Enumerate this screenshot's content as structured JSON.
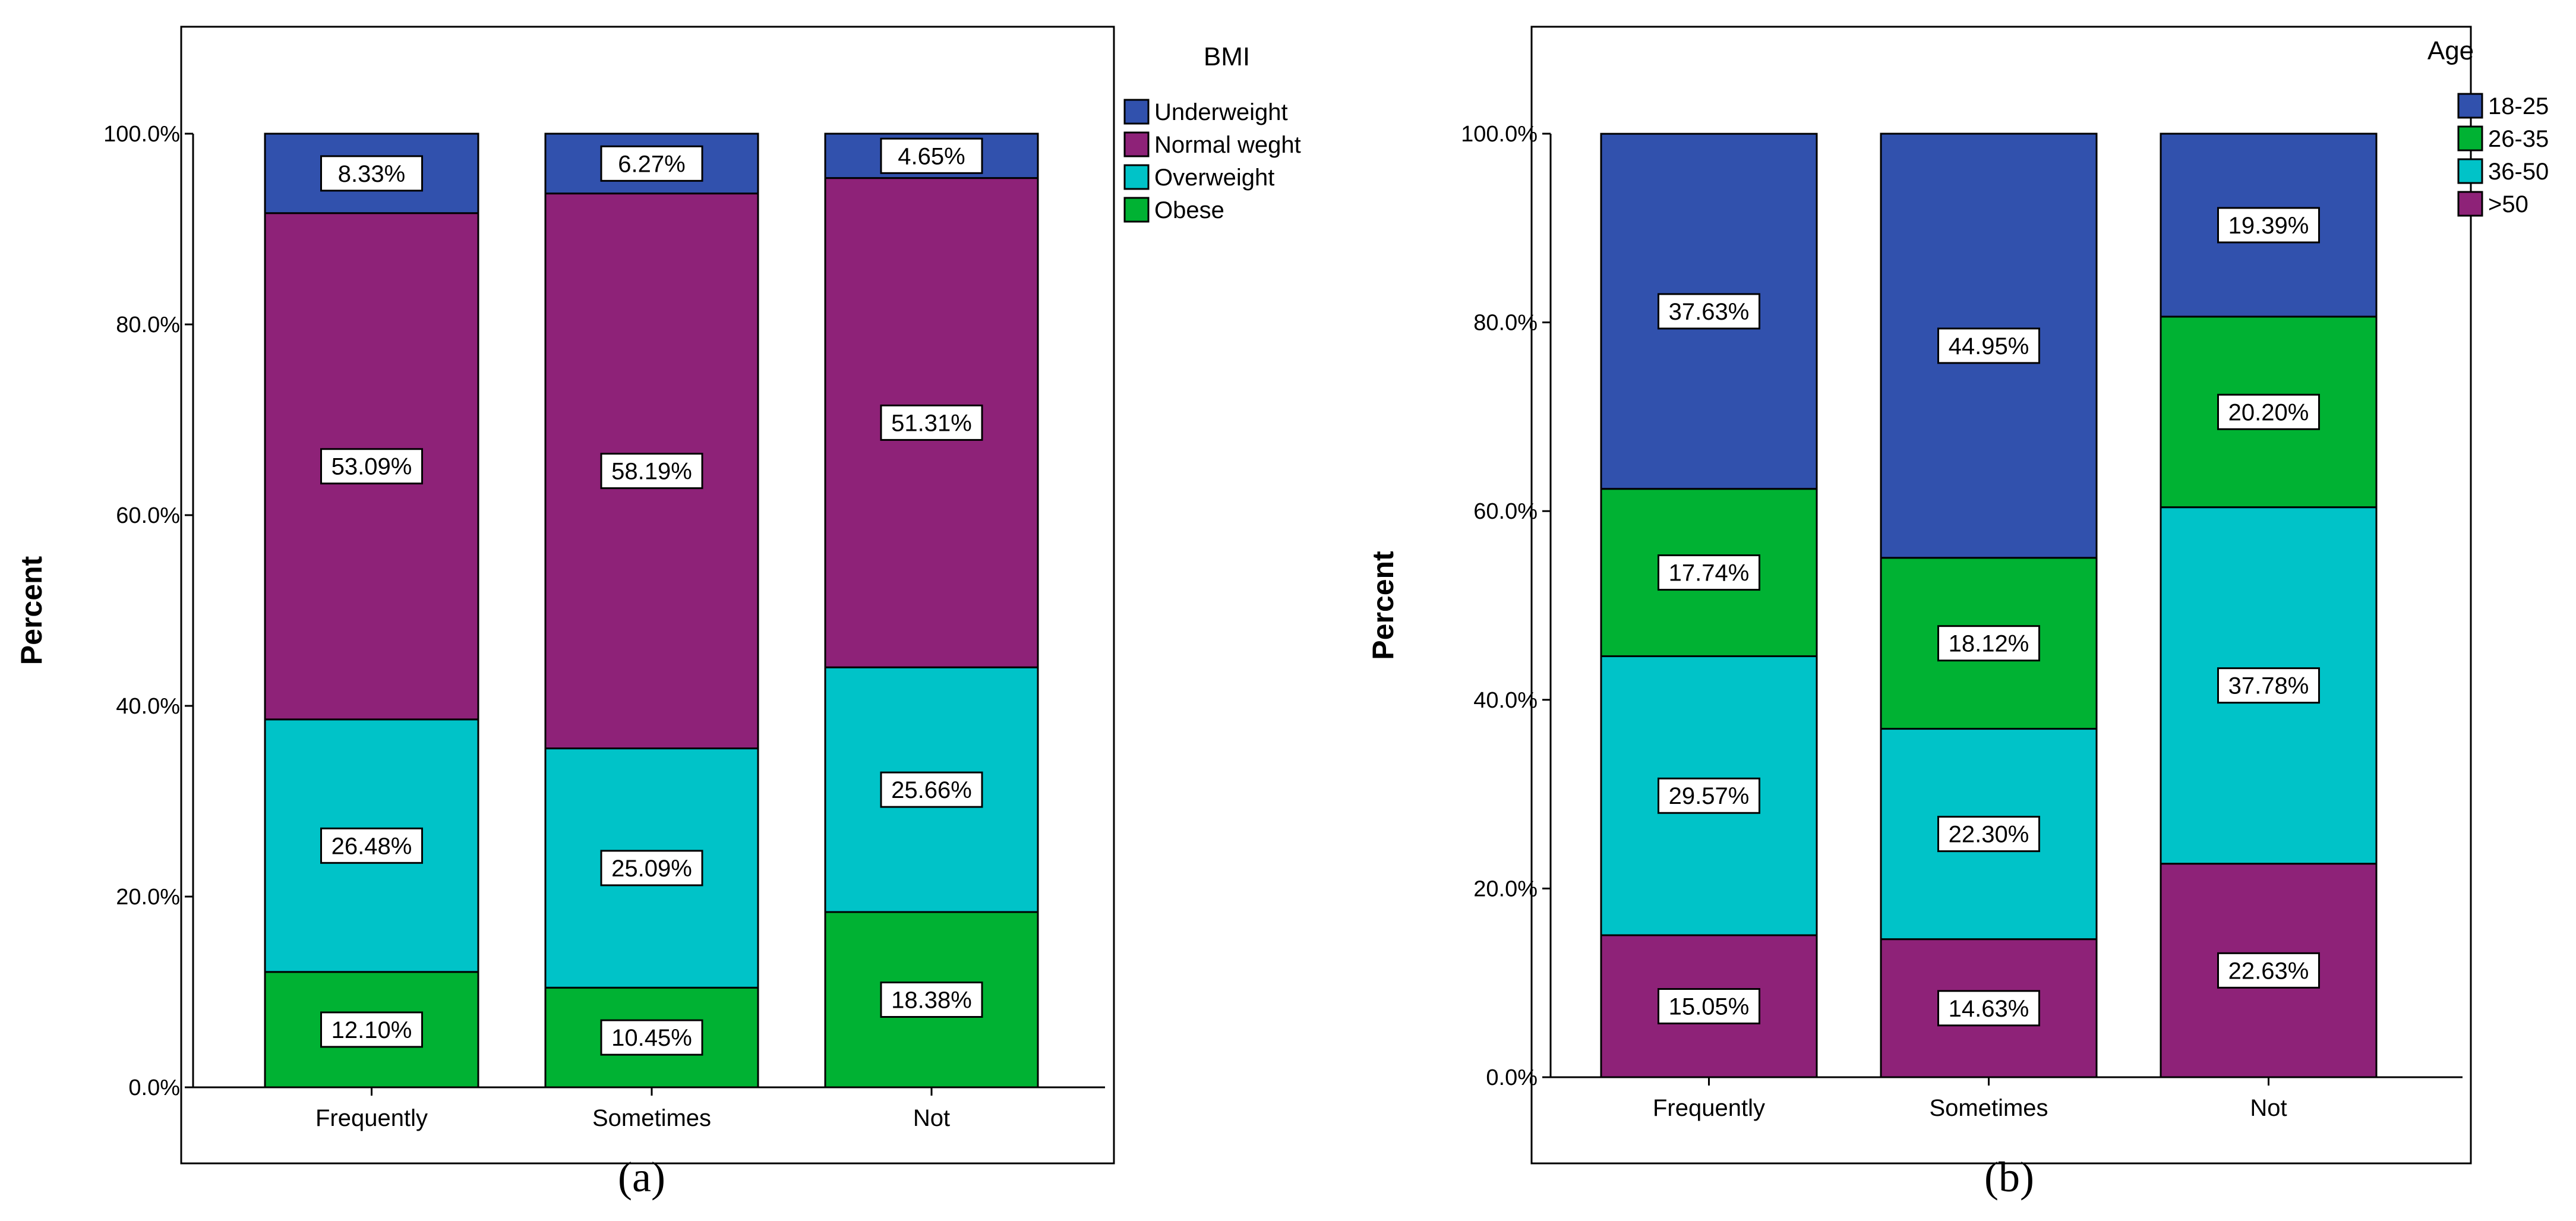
{
  "chart_data": [
    {
      "type": "bar",
      "stacked": true,
      "panel_label": "a",
      "ylabel": "Percent",
      "xlabel": "",
      "ylim": [
        0,
        100
      ],
      "yticks": [
        "0.0%",
        "20.0%",
        "40.0%",
        "60.0%",
        "80.0%",
        "100.0%"
      ],
      "ytick_values": [
        0,
        20,
        40,
        60,
        80,
        100
      ],
      "categories": [
        "Frequently",
        "Sometimes",
        "Not"
      ],
      "legend_title": "BMI",
      "legend_position": "top-right",
      "series": [
        {
          "name": "Obese",
          "color": "#00b233",
          "values": [
            12.1,
            10.45,
            18.38
          ],
          "labels": [
            "12.10%",
            "10.45%",
            "18.38%"
          ]
        },
        {
          "name": "Overweight",
          "color": "#00c3c8",
          "values": [
            26.48,
            25.09,
            25.66
          ],
          "labels": [
            "26.48%",
            "25.09%",
            "25.66%"
          ]
        },
        {
          "name": "Normal weght",
          "color": "#8e2278",
          "values": [
            53.09,
            58.19,
            51.31
          ],
          "labels": [
            "53.09%",
            "58.19%",
            "51.31%"
          ]
        },
        {
          "name": "Underweight",
          "color": "#3151ad",
          "values": [
            8.33,
            6.27,
            4.65
          ],
          "labels": [
            "8.33%",
            "6.27%",
            "4.65%"
          ]
        }
      ],
      "legend_order": [
        "Underweight",
        "Normal weght",
        "Overweight",
        "Obese"
      ]
    },
    {
      "type": "bar",
      "stacked": true,
      "panel_label": "b",
      "ylabel": "Percent",
      "xlabel": "",
      "ylim": [
        0,
        100
      ],
      "yticks": [
        "0.0%",
        "20.0%",
        "40.0%",
        "60.0%",
        "80.0%",
        "100.0%"
      ],
      "ytick_values": [
        0,
        20,
        40,
        60,
        80,
        100
      ],
      "categories": [
        "Frequently",
        "Sometimes",
        "Not"
      ],
      "legend_title": "Age",
      "legend_position": "top-right",
      "series": [
        {
          "name": ">50",
          "color": "#8e2278",
          "values": [
            15.05,
            14.63,
            22.63
          ],
          "labels": [
            "15.05%",
            "14.63%",
            "22.63%"
          ]
        },
        {
          "name": "36-50",
          "color": "#00c3c8",
          "values": [
            29.57,
            22.3,
            37.78
          ],
          "labels": [
            "29.57%",
            "22.30%",
            "37.78%"
          ]
        },
        {
          "name": "26-35",
          "color": "#00b233",
          "values": [
            17.74,
            18.12,
            20.2
          ],
          "labels": [
            "17.74%",
            "18.12%",
            "20.20%"
          ]
        },
        {
          "name": "18-25",
          "color": "#3151ad",
          "values": [
            37.63,
            44.95,
            19.39
          ],
          "labels": [
            "37.63%",
            "44.95%",
            "19.39%"
          ]
        }
      ],
      "legend_order": [
        "18-25",
        "26-35",
        "36-50",
        ">50"
      ]
    }
  ],
  "captions": [
    "(a)",
    "(b)"
  ]
}
